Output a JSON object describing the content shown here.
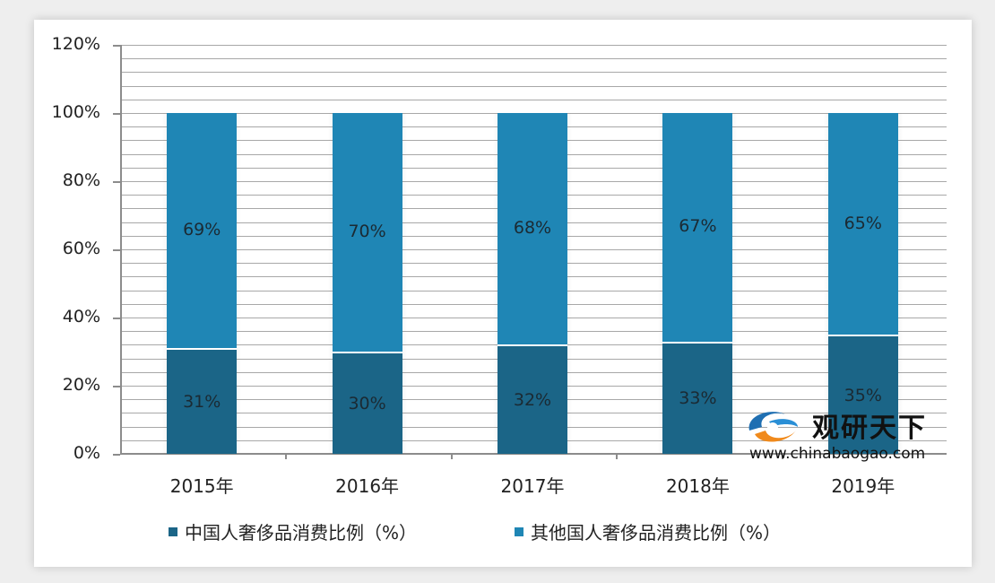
{
  "chart_data": {
    "type": "bar",
    "stacked": true,
    "title": "",
    "xlabel": "",
    "ylabel": "",
    "categories": [
      "2015年",
      "2016年",
      "2017年",
      "2018年",
      "2019年"
    ],
    "series": [
      {
        "name": "中国人奢侈品消费比例（%）",
        "color": "#1b6587",
        "values": [
          31,
          30,
          32,
          33,
          35
        ],
        "labels": [
          "31%",
          "30%",
          "32%",
          "33%",
          "35%"
        ]
      },
      {
        "name": "其他国人奢侈品消费比例（%）",
        "color": "#1f86b5",
        "values": [
          69,
          70,
          68,
          67,
          65
        ],
        "labels": [
          "69%",
          "70%",
          "68%",
          "67%",
          "65%"
        ]
      }
    ],
    "ylim": [
      0,
      120
    ],
    "yticks": [
      "0%",
      "20%",
      "40%",
      "60%",
      "80%",
      "100%",
      "120%"
    ],
    "grid": true,
    "minor_grid_step": 4,
    "legend_position": "bottom"
  },
  "legend": {
    "items": [
      {
        "label": "中国人奢侈品消费比例（%）",
        "color": "#1b6587"
      },
      {
        "label": "其他国人奢侈品消费比例（%）",
        "color": "#1f86b5"
      }
    ]
  },
  "watermark": {
    "title": "观研天下",
    "url": "www.chinabaogao.com",
    "icon": "swirl-logo-icon"
  }
}
